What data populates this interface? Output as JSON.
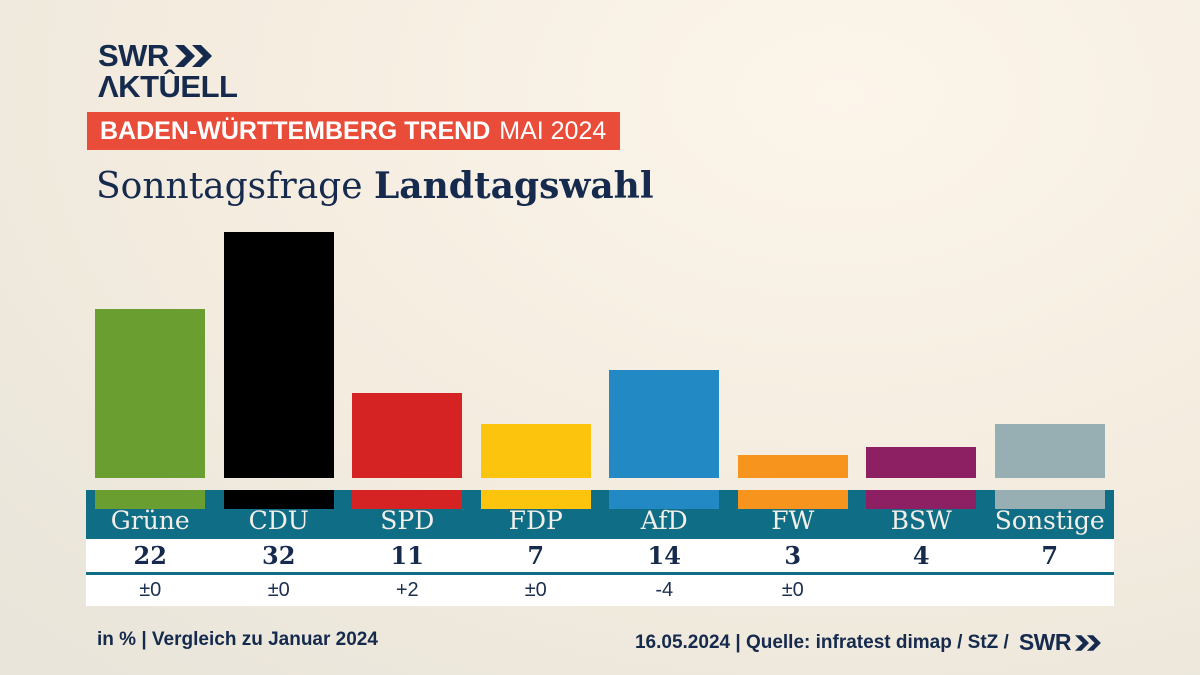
{
  "brand": {
    "logo_line1": "SWR",
    "logo_line2": "AKTUELL",
    "logo_line2_display": "ΛKTÛELL",
    "navy": "#152a4d"
  },
  "banner": {
    "title": "BADEN-WÜRTTEMBERG TREND",
    "period": "MAI 2024",
    "bg_color": "#e94d3a"
  },
  "title": {
    "regular": "Sonntagsfrage",
    "bold": "Landtagswahl"
  },
  "chart_data": {
    "type": "bar",
    "title": "Sonntagsfrage Landtagswahl",
    "categories": [
      "Grüne",
      "CDU",
      "SPD",
      "FDP",
      "AfD",
      "FW",
      "BSW",
      "Sonstige"
    ],
    "values": [
      22,
      32,
      11,
      7,
      14,
      3,
      4,
      7
    ],
    "changes": [
      "±0",
      "±0",
      "+2",
      "±0",
      "-4",
      "±0",
      "",
      ""
    ],
    "colors": [
      "#6a9e31",
      "#000000",
      "#d42322",
      "#fdc40e",
      "#2289c5",
      "#f7941d",
      "#8c2063",
      "#97aeb2"
    ],
    "unit": "%",
    "comparison_note": "Vergleich zu Januar 2024",
    "ylim": [
      0,
      32
    ],
    "grid": false,
    "legend": "none",
    "band_color": "#0f6e86"
  },
  "footer": {
    "left": "in % | Vergleich zu Januar 2024",
    "right": "16.05.2024 | Quelle: infratest dimap / StZ /",
    "logo": "SWR"
  }
}
